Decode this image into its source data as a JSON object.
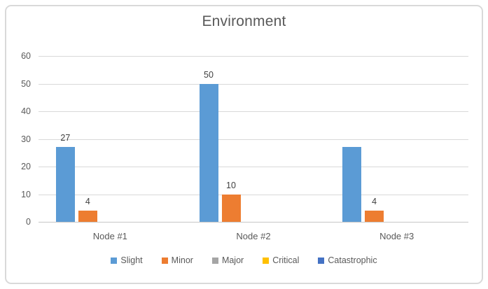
{
  "chart_data": {
    "type": "bar",
    "title": "Environment",
    "categories": [
      "Node #1",
      "Node #2",
      "Node #3"
    ],
    "series": [
      {
        "name": "Slight",
        "color": "#5B9BD5",
        "values": [
          27,
          50,
          27
        ],
        "labels": [
          "27",
          "50",
          ""
        ]
      },
      {
        "name": "Minor",
        "color": "#ED7D31",
        "values": [
          4,
          10,
          4
        ],
        "labels": [
          "4",
          "10",
          "4"
        ]
      },
      {
        "name": "Major",
        "color": "#A5A5A5",
        "values": [
          0,
          0,
          0
        ],
        "labels": [
          "",
          "",
          ""
        ]
      },
      {
        "name": "Critical",
        "color": "#FFC000",
        "values": [
          0,
          0,
          0
        ],
        "labels": [
          "",
          "",
          ""
        ]
      },
      {
        "name": "Catastrophic",
        "color": "#4472C4",
        "values": [
          0,
          0,
          0
        ],
        "labels": [
          "",
          "",
          ""
        ]
      }
    ],
    "y_axis": {
      "min": 0,
      "max": 60,
      "step": 10,
      "tick_labels": [
        "0",
        "10",
        "20",
        "30",
        "40",
        "50",
        "60"
      ]
    },
    "xlabel": "",
    "ylabel": "",
    "grid": true,
    "legend_position": "bottom"
  },
  "frame": {
    "background_color": "#FFFFFF",
    "border_color": "#D9D9D9",
    "gridline_color": "#D9D9D9",
    "title_color": "#595959",
    "axis_text_color": "#595959",
    "data_label_color": "#404040"
  }
}
